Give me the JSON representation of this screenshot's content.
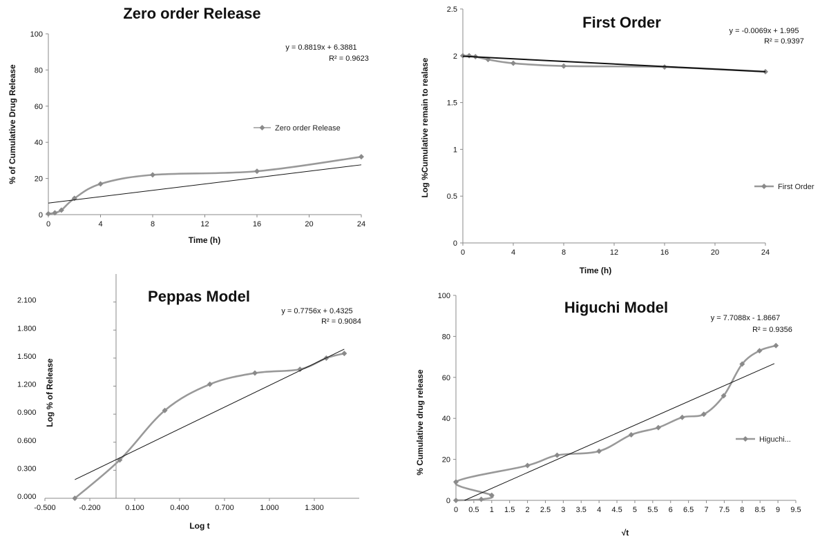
{
  "chart_data": [
    {
      "id": "zero",
      "type": "scatter",
      "title": "Zero order Release",
      "xlabel": "Time (h)",
      "ylabel": "% of Cumulative Drug Release",
      "xlim": [
        0,
        24
      ],
      "ylim": [
        0,
        100
      ],
      "xticks": [
        0,
        4,
        8,
        12,
        16,
        20,
        24
      ],
      "xtick_labels": [
        "0",
        "4",
        "8",
        "12",
        "16",
        "20",
        "24"
      ],
      "yticks": [
        0,
        20,
        40,
        60,
        80,
        100
      ],
      "ytick_labels": [
        "0",
        "20",
        "40",
        "60",
        "80",
        "100"
      ],
      "grid": false,
      "legend_position": "right",
      "series": [
        {
          "name": "Zero order Release",
          "smooth": true,
          "x": [
            0,
            0.5,
            1,
            2,
            4,
            8,
            16,
            24
          ],
          "y": [
            0.5,
            1,
            2.5,
            9,
            17,
            22,
            24,
            32
          ]
        }
      ],
      "trendline": {
        "slope": 0.8819,
        "intercept": 6.3881,
        "x_range": [
          0,
          24
        ]
      },
      "equation": "y = 0.8819x + 6.3881",
      "r2": "R² = 0.9623"
    },
    {
      "id": "first",
      "type": "scatter",
      "title": "First Order",
      "xlabel": "Time (h)",
      "ylabel": "Log %Cumulative remain to realase",
      "xlim": [
        0,
        24
      ],
      "ylim": [
        0,
        2.5
      ],
      "xticks": [
        0,
        4,
        8,
        12,
        16,
        20,
        24
      ],
      "xtick_labels": [
        "0",
        "4",
        "8",
        "12",
        "16",
        "20",
        "24"
      ],
      "yticks": [
        0,
        0.5,
        1,
        1.5,
        2,
        2.5
      ],
      "ytick_labels": [
        "0",
        "0.5",
        "1",
        "1.5",
        "2",
        "2.5"
      ],
      "grid": false,
      "legend_position": "right",
      "series": [
        {
          "name": "First Order",
          "smooth": true,
          "x": [
            0,
            0.5,
            1,
            2,
            4,
            8,
            16,
            24
          ],
          "y": [
            2.0,
            2.0,
            1.99,
            1.96,
            1.92,
            1.89,
            1.88,
            1.83
          ]
        }
      ],
      "trendline": {
        "slope": -0.0069,
        "intercept": 1.995,
        "x_range": [
          0,
          24
        ]
      },
      "equation": "y = -0.0069x + 1.995",
      "r2": "R² = 0.9397"
    },
    {
      "id": "peppas",
      "type": "scatter",
      "title": "Peppas Model",
      "xlabel": "Log t",
      "ylabel": "Log % of Release",
      "xlim": [
        -0.5,
        1.6
      ],
      "ylim": [
        0,
        2.4
      ],
      "xticks": [
        -0.5,
        -0.2,
        0.1,
        0.4,
        0.7,
        1.0,
        1.3
      ],
      "xtick_labels": [
        "-0.500",
        "-0.200",
        "0.100",
        "0.400",
        "0.700",
        "1.000",
        "1.300"
      ],
      "yticks": [
        0,
        0.3,
        0.6,
        0.9,
        1.2,
        1.5,
        1.8,
        2.1
      ],
      "ytick_labels": [
        "0.000",
        "0.300",
        "0.600",
        "0.900",
        "1.200",
        "1.500",
        "1.800",
        "2.100"
      ],
      "grid": false,
      "series": [
        {
          "name": "",
          "smooth": true,
          "x": [
            -0.3,
            0,
            0.301,
            0.602,
            0.903,
            1.204,
            1.38,
            1.5
          ],
          "y": [
            0.0,
            0.41,
            0.94,
            1.22,
            1.34,
            1.38,
            1.5,
            1.55
          ]
        }
      ],
      "trendline": {
        "slope": 0.7756,
        "intercept": 0.4325,
        "x_range": [
          -0.3,
          1.5
        ]
      },
      "equation": "y = 0.7756x + 0.4325",
      "r2": "R² = 0.9084"
    },
    {
      "id": "higuchi",
      "type": "scatter",
      "title": "Higuchi Model",
      "xlabel": "√t",
      "ylabel": "% Cumulative drug release",
      "xlim": [
        0,
        9.5
      ],
      "ylim": [
        0,
        100
      ],
      "xticks": [
        0,
        0.5,
        1,
        1.5,
        2,
        2.5,
        3,
        3.5,
        4,
        4.5,
        5,
        5.5,
        6,
        6.5,
        7,
        7.5,
        8,
        8.5,
        9,
        9.5
      ],
      "xtick_labels": [
        "0",
        "0.5",
        "1",
        "1.5",
        "2",
        "2.5",
        "3",
        "3.5",
        "4",
        "4.5",
        "5",
        "5.5",
        "6",
        "6.5",
        "7",
        "7.5",
        "8",
        "8.5",
        "9",
        "9.5"
      ],
      "yticks": [
        0,
        20,
        40,
        60,
        80,
        100
      ],
      "ytick_labels": [
        "0",
        "20",
        "40",
        "60",
        "80",
        "100"
      ],
      "grid": false,
      "legend_position": "right",
      "series": [
        {
          "name": "Higuchi...",
          "smooth": true,
          "x": [
            0,
            0.707,
            1,
            0,
            2,
            2.828,
            4,
            4.899,
            5.657,
            6.325,
            6.928,
            7.483,
            8,
            8.485,
            8.944
          ],
          "y": [
            0,
            0.5,
            2.5,
            9,
            17,
            22,
            24,
            32,
            35.5,
            40.5,
            42,
            51,
            66.5,
            73,
            75.5
          ]
        }
      ],
      "trendline": {
        "slope": 7.7088,
        "intercept": -1.8667,
        "x_range": [
          0.242,
          8.9
        ]
      },
      "equation": "y = 7.7088x - 1.8667",
      "r2": "R² = 0.9356"
    }
  ]
}
